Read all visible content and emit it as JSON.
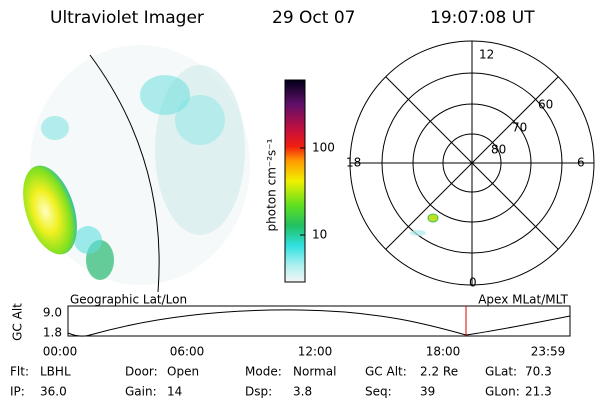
{
  "header": {
    "instrument": "Ultraviolet Imager",
    "date": "29 Oct 07",
    "time": "19:07:08 UT"
  },
  "colorbar": {
    "label": "photon cm⁻²s⁻¹",
    "ticks": [
      "100",
      "10"
    ]
  },
  "polar": {
    "mlt_labels": [
      "12",
      "18",
      "6",
      "0"
    ],
    "mlat_labels": [
      "60",
      "70",
      "80"
    ]
  },
  "timeline": {
    "left_title": "Geographic Lat/Lon",
    "right_title": "Apex MLat/MLT",
    "y_label": "GC Alt",
    "y_ticks": [
      "9.0",
      "1.8"
    ],
    "x_ticks": [
      "00:00",
      "06:00",
      "12:00",
      "18:00",
      "23:59"
    ]
  },
  "info": [
    [
      [
        "Flt:",
        "LBHL"
      ],
      [
        "Door:",
        "Open"
      ],
      [
        "Mode:",
        "Normal"
      ],
      [
        "GC Alt:",
        "2.2 Re"
      ],
      [
        "GLat:",
        "70.3"
      ]
    ],
    [
      [
        "IP:",
        "36.0"
      ],
      [
        "Gain:",
        "14"
      ],
      [
        "Dsp:",
        "3.8"
      ],
      [
        "Seq:",
        "39"
      ],
      [
        "GLon:",
        "21.3"
      ]
    ]
  ]
}
